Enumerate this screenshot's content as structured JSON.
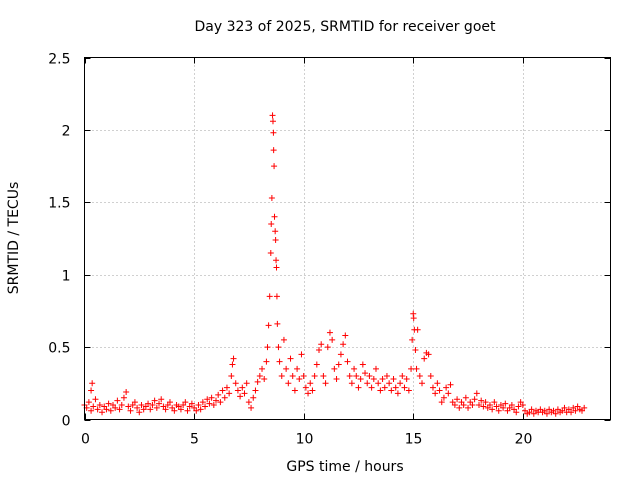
{
  "chart_data": {
    "type": "scatter",
    "title": "Day 323 of 2025, SRMTID for receiver goet",
    "xlabel": "GPS time / hours",
    "ylabel": "SRMTID / TECUs",
    "xlim": [
      0,
      24
    ],
    "ylim": [
      0,
      2.5
    ],
    "xticks": [
      0,
      5,
      10,
      15,
      20
    ],
    "xtick_labels": [
      "0",
      "5",
      "10",
      "15",
      "20"
    ],
    "yticks": [
      0,
      0.5,
      1,
      1.5,
      2,
      2.5
    ],
    "ytick_labels": [
      "0",
      "0.5",
      "1",
      "1.5",
      "2",
      "2.5"
    ],
    "grid": true,
    "marker": "+",
    "color": "#ff0000",
    "series": [
      {
        "name": "SRMTID",
        "points": [
          [
            0.0,
            0.1
          ],
          [
            0.1,
            0.08
          ],
          [
            0.2,
            0.12
          ],
          [
            0.3,
            0.06
          ],
          [
            0.3,
            0.2
          ],
          [
            0.35,
            0.25
          ],
          [
            0.4,
            0.09
          ],
          [
            0.5,
            0.14
          ],
          [
            0.6,
            0.07
          ],
          [
            0.7,
            0.1
          ],
          [
            0.8,
            0.05
          ],
          [
            0.9,
            0.09
          ],
          [
            1.0,
            0.07
          ],
          [
            1.1,
            0.11
          ],
          [
            1.2,
            0.06
          ],
          [
            1.3,
            0.1
          ],
          [
            1.4,
            0.08
          ],
          [
            1.5,
            0.13
          ],
          [
            1.6,
            0.07
          ],
          [
            1.7,
            0.1
          ],
          [
            1.8,
            0.15
          ],
          [
            1.9,
            0.19
          ],
          [
            2.0,
            0.09
          ],
          [
            2.1,
            0.06
          ],
          [
            2.2,
            0.1
          ],
          [
            2.3,
            0.12
          ],
          [
            2.4,
            0.08
          ],
          [
            2.5,
            0.05
          ],
          [
            2.6,
            0.1
          ],
          [
            2.7,
            0.07
          ],
          [
            2.8,
            0.09
          ],
          [
            2.9,
            0.11
          ],
          [
            3.0,
            0.07
          ],
          [
            3.1,
            0.1
          ],
          [
            3.2,
            0.13
          ],
          [
            3.3,
            0.08
          ],
          [
            3.4,
            0.11
          ],
          [
            3.5,
            0.14
          ],
          [
            3.6,
            0.09
          ],
          [
            3.7,
            0.07
          ],
          [
            3.8,
            0.1
          ],
          [
            3.9,
            0.12
          ],
          [
            4.0,
            0.08
          ],
          [
            4.1,
            0.06
          ],
          [
            4.2,
            0.1
          ],
          [
            4.3,
            0.09
          ],
          [
            4.4,
            0.07
          ],
          [
            4.5,
            0.1
          ],
          [
            4.6,
            0.12
          ],
          [
            4.7,
            0.06
          ],
          [
            4.8,
            0.09
          ],
          [
            4.9,
            0.11
          ],
          [
            5.0,
            0.08
          ],
          [
            5.1,
            0.06
          ],
          [
            5.2,
            0.1
          ],
          [
            5.3,
            0.07
          ],
          [
            5.4,
            0.12
          ],
          [
            5.5,
            0.09
          ],
          [
            5.6,
            0.14
          ],
          [
            5.7,
            0.11
          ],
          [
            5.8,
            0.15
          ],
          [
            5.9,
            0.1
          ],
          [
            6.0,
            0.13
          ],
          [
            6.1,
            0.17
          ],
          [
            6.2,
            0.12
          ],
          [
            6.3,
            0.2
          ],
          [
            6.4,
            0.15
          ],
          [
            6.5,
            0.22
          ],
          [
            6.6,
            0.18
          ],
          [
            6.7,
            0.3
          ],
          [
            6.75,
            0.38
          ],
          [
            6.8,
            0.42
          ],
          [
            6.9,
            0.25
          ],
          [
            7.0,
            0.2
          ],
          [
            7.1,
            0.16
          ],
          [
            7.2,
            0.22
          ],
          [
            7.3,
            0.18
          ],
          [
            7.4,
            0.25
          ],
          [
            7.5,
            0.12
          ],
          [
            7.6,
            0.08
          ],
          [
            7.7,
            0.15
          ],
          [
            7.8,
            0.2
          ],
          [
            7.9,
            0.26
          ],
          [
            8.0,
            0.3
          ],
          [
            8.1,
            0.35
          ],
          [
            8.2,
            0.28
          ],
          [
            8.3,
            0.4
          ],
          [
            8.35,
            0.5
          ],
          [
            8.4,
            0.65
          ],
          [
            8.45,
            0.85
          ],
          [
            8.5,
            1.15
          ],
          [
            8.52,
            1.35
          ],
          [
            8.55,
            1.53
          ],
          [
            8.58,
            2.1
          ],
          [
            8.6,
            2.06
          ],
          [
            8.62,
            1.98
          ],
          [
            8.63,
            1.86
          ],
          [
            8.65,
            1.75
          ],
          [
            8.67,
            1.4
          ],
          [
            8.7,
            1.3
          ],
          [
            8.72,
            1.24
          ],
          [
            8.74,
            1.1
          ],
          [
            8.76,
            1.05
          ],
          [
            8.78,
            0.85
          ],
          [
            8.8,
            0.66
          ],
          [
            8.85,
            0.5
          ],
          [
            8.9,
            0.4
          ],
          [
            9.0,
            0.3
          ],
          [
            9.1,
            0.55
          ],
          [
            9.2,
            0.35
          ],
          [
            9.3,
            0.25
          ],
          [
            9.4,
            0.42
          ],
          [
            9.5,
            0.3
          ],
          [
            9.6,
            0.2
          ],
          [
            9.7,
            0.35
          ],
          [
            9.8,
            0.28
          ],
          [
            9.9,
            0.45
          ],
          [
            10.0,
            0.3
          ],
          [
            10.1,
            0.22
          ],
          [
            10.2,
            0.18
          ],
          [
            10.3,
            0.25
          ],
          [
            10.4,
            0.2
          ],
          [
            10.5,
            0.3
          ],
          [
            10.6,
            0.38
          ],
          [
            10.7,
            0.48
          ],
          [
            10.8,
            0.52
          ],
          [
            10.9,
            0.3
          ],
          [
            11.0,
            0.25
          ],
          [
            11.1,
            0.5
          ],
          [
            11.2,
            0.6
          ],
          [
            11.3,
            0.55
          ],
          [
            11.4,
            0.35
          ],
          [
            11.5,
            0.28
          ],
          [
            11.6,
            0.38
          ],
          [
            11.7,
            0.45
          ],
          [
            11.8,
            0.52
          ],
          [
            11.9,
            0.58
          ],
          [
            12.0,
            0.4
          ],
          [
            12.1,
            0.3
          ],
          [
            12.2,
            0.25
          ],
          [
            12.3,
            0.35
          ],
          [
            12.4,
            0.3
          ],
          [
            12.5,
            0.22
          ],
          [
            12.6,
            0.28
          ],
          [
            12.7,
            0.38
          ],
          [
            12.8,
            0.32
          ],
          [
            12.9,
            0.25
          ],
          [
            13.0,
            0.3
          ],
          [
            13.1,
            0.22
          ],
          [
            13.2,
            0.28
          ],
          [
            13.3,
            0.35
          ],
          [
            13.4,
            0.25
          ],
          [
            13.5,
            0.2
          ],
          [
            13.6,
            0.28
          ],
          [
            13.7,
            0.22
          ],
          [
            13.8,
            0.3
          ],
          [
            13.9,
            0.25
          ],
          [
            14.0,
            0.2
          ],
          [
            14.1,
            0.28
          ],
          [
            14.2,
            0.22
          ],
          [
            14.3,
            0.18
          ],
          [
            14.4,
            0.25
          ],
          [
            14.5,
            0.3
          ],
          [
            14.6,
            0.22
          ],
          [
            14.7,
            0.28
          ],
          [
            14.8,
            0.2
          ],
          [
            14.9,
            0.35
          ],
          [
            14.95,
            0.55
          ],
          [
            15.0,
            0.73
          ],
          [
            15.02,
            0.7
          ],
          [
            15.05,
            0.62
          ],
          [
            15.1,
            0.48
          ],
          [
            15.15,
            0.35
          ],
          [
            15.2,
            0.62
          ],
          [
            15.3,
            0.3
          ],
          [
            15.4,
            0.25
          ],
          [
            15.5,
            0.42
          ],
          [
            15.6,
            0.46
          ],
          [
            15.7,
            0.45
          ],
          [
            15.8,
            0.3
          ],
          [
            15.9,
            0.22
          ],
          [
            16.0,
            0.18
          ],
          [
            16.1,
            0.25
          ],
          [
            16.2,
            0.2
          ],
          [
            16.3,
            0.12
          ],
          [
            16.4,
            0.15
          ],
          [
            16.5,
            0.22
          ],
          [
            16.6,
            0.18
          ],
          [
            16.7,
            0.24
          ],
          [
            16.8,
            0.12
          ],
          [
            16.9,
            0.1
          ],
          [
            17.0,
            0.14
          ],
          [
            17.1,
            0.08
          ],
          [
            17.2,
            0.12
          ],
          [
            17.3,
            0.1
          ],
          [
            17.4,
            0.15
          ],
          [
            17.5,
            0.08
          ],
          [
            17.6,
            0.12
          ],
          [
            17.7,
            0.1
          ],
          [
            17.8,
            0.14
          ],
          [
            17.9,
            0.18
          ],
          [
            18.0,
            0.1
          ],
          [
            18.1,
            0.13
          ],
          [
            18.2,
            0.09
          ],
          [
            18.3,
            0.12
          ],
          [
            18.4,
            0.08
          ],
          [
            18.5,
            0.1
          ],
          [
            18.6,
            0.07
          ],
          [
            18.7,
            0.12
          ],
          [
            18.8,
            0.09
          ],
          [
            18.9,
            0.06
          ],
          [
            19.0,
            0.1
          ],
          [
            19.1,
            0.08
          ],
          [
            19.2,
            0.11
          ],
          [
            19.3,
            0.06
          ],
          [
            19.4,
            0.08
          ],
          [
            19.5,
            0.1
          ],
          [
            19.6,
            0.07
          ],
          [
            19.7,
            0.05
          ],
          [
            19.8,
            0.09
          ],
          [
            19.9,
            0.12
          ],
          [
            20.0,
            0.1
          ],
          [
            20.1,
            0.06
          ],
          [
            20.2,
            0.04
          ],
          [
            20.3,
            0.05
          ],
          [
            20.4,
            0.07
          ],
          [
            20.5,
            0.04
          ],
          [
            20.6,
            0.06
          ],
          [
            20.7,
            0.05
          ],
          [
            20.8,
            0.07
          ],
          [
            20.9,
            0.05
          ],
          [
            21.0,
            0.06
          ],
          [
            21.1,
            0.04
          ],
          [
            21.2,
            0.07
          ],
          [
            21.3,
            0.05
          ],
          [
            21.4,
            0.06
          ],
          [
            21.5,
            0.04
          ],
          [
            21.6,
            0.07
          ],
          [
            21.7,
            0.05
          ],
          [
            21.8,
            0.06
          ],
          [
            21.9,
            0.08
          ],
          [
            22.0,
            0.05
          ],
          [
            22.1,
            0.07
          ],
          [
            22.2,
            0.05
          ],
          [
            22.3,
            0.08
          ],
          [
            22.4,
            0.06
          ],
          [
            22.5,
            0.09
          ],
          [
            22.6,
            0.07
          ],
          [
            22.7,
            0.06
          ],
          [
            22.8,
            0.08
          ]
        ]
      }
    ]
  }
}
